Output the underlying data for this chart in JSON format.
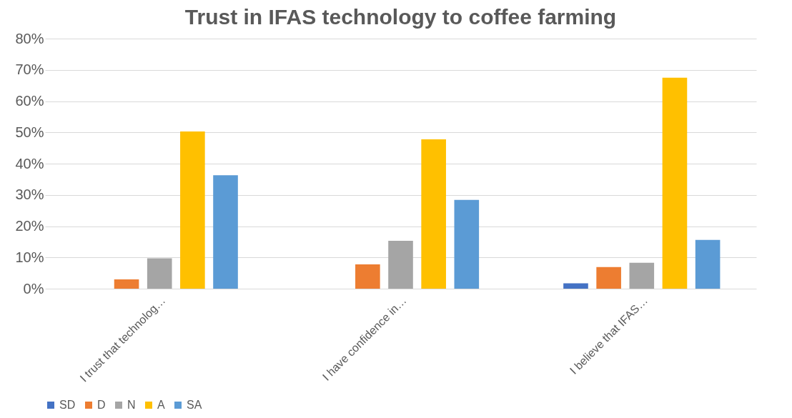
{
  "chart_data": {
    "type": "bar",
    "title": "Trust in IFAS technology to coffee farming",
    "categories": [
      "I  trust that technolog…",
      "I have confidence in…",
      "I believe that IFAS…"
    ],
    "series": [
      {
        "name": "SD",
        "color": "#4472c4",
        "values": [
          0,
          0,
          1.7
        ]
      },
      {
        "name": "D",
        "color": "#ed7d31",
        "values": [
          3.0,
          7.8,
          6.9
        ]
      },
      {
        "name": "N",
        "color": "#a5a5a5",
        "values": [
          9.7,
          15.3,
          8.3
        ]
      },
      {
        "name": "A",
        "color": "#ffc000",
        "values": [
          50.3,
          47.8,
          67.5
        ]
      },
      {
        "name": "SA",
        "color": "#5b9bd5",
        "values": [
          36.3,
          28.4,
          15.6
        ]
      }
    ],
    "ylim": [
      0,
      80
    ],
    "yticks": [
      {
        "value": 0,
        "label": "0%"
      },
      {
        "value": 10,
        "label": "10%"
      },
      {
        "value": 20,
        "label": "20%"
      },
      {
        "value": 30,
        "label": "30%"
      },
      {
        "value": 40,
        "label": "40%"
      },
      {
        "value": 50,
        "label": "50%"
      },
      {
        "value": 60,
        "label": "60%"
      },
      {
        "value": 70,
        "label": "70%"
      },
      {
        "value": 80,
        "label": "80%"
      }
    ],
    "grid": "y",
    "legend": "bottom"
  }
}
